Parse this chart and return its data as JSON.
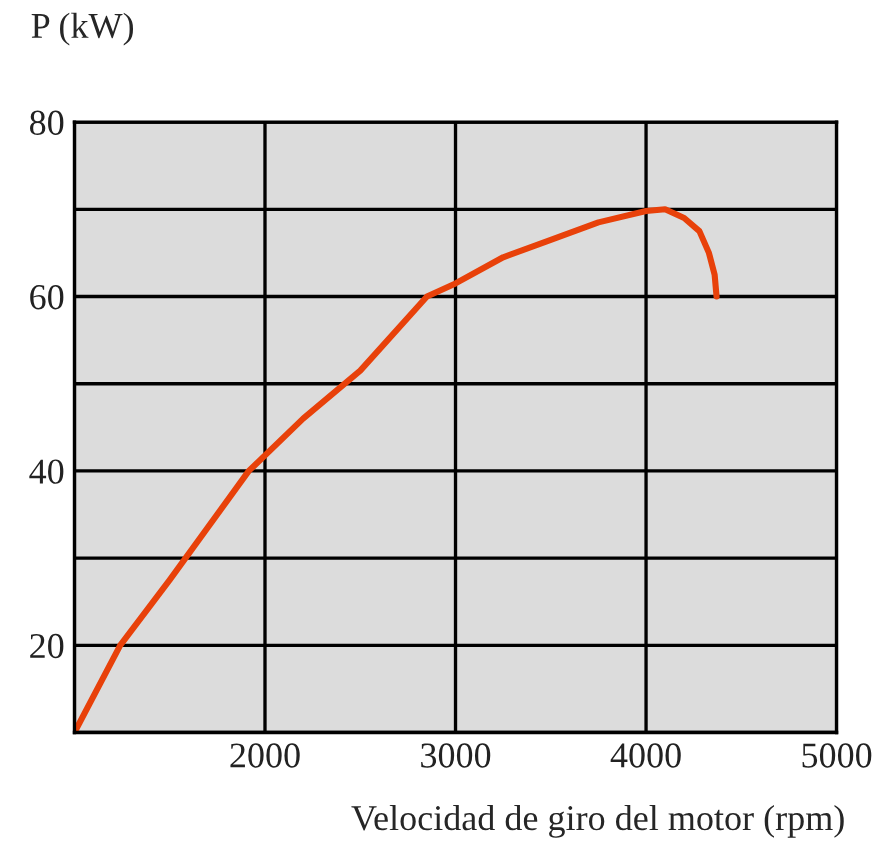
{
  "chart_data": {
    "type": "line",
    "xlabel": "Velocidad de giro del motor (rpm)",
    "ylabel": "P (kW)",
    "x": [
      1000,
      1240,
      1500,
      1915,
      2200,
      2500,
      2850,
      3000,
      3250,
      3500,
      3750,
      4000,
      4100,
      4200,
      4280,
      4330,
      4360,
      4370
    ],
    "series": [
      {
        "color": "#e8410a",
        "values": [
          10,
          20,
          27.5,
          40,
          46,
          51.5,
          60,
          61.5,
          64.5,
          66.5,
          68.5,
          69.8,
          70,
          69,
          67.5,
          65,
          62.5,
          60
        ]
      }
    ],
    "xlim": [
      1000,
      5000
    ],
    "xticks": [
      {
        "value": 1000,
        "label": null
      },
      2000,
      3000,
      4000,
      5000
    ],
    "ylim": [
      10,
      80
    ],
    "yticks": [
      {
        "value": 10,
        "label": null
      },
      20,
      {
        "value": 30,
        "label": null
      },
      40,
      {
        "value": 50,
        "label": null
      },
      60,
      {
        "value": 70,
        "label": null
      },
      80
    ],
    "grid": true,
    "marker": "none",
    "line_style": "solid",
    "legend": false
  }
}
